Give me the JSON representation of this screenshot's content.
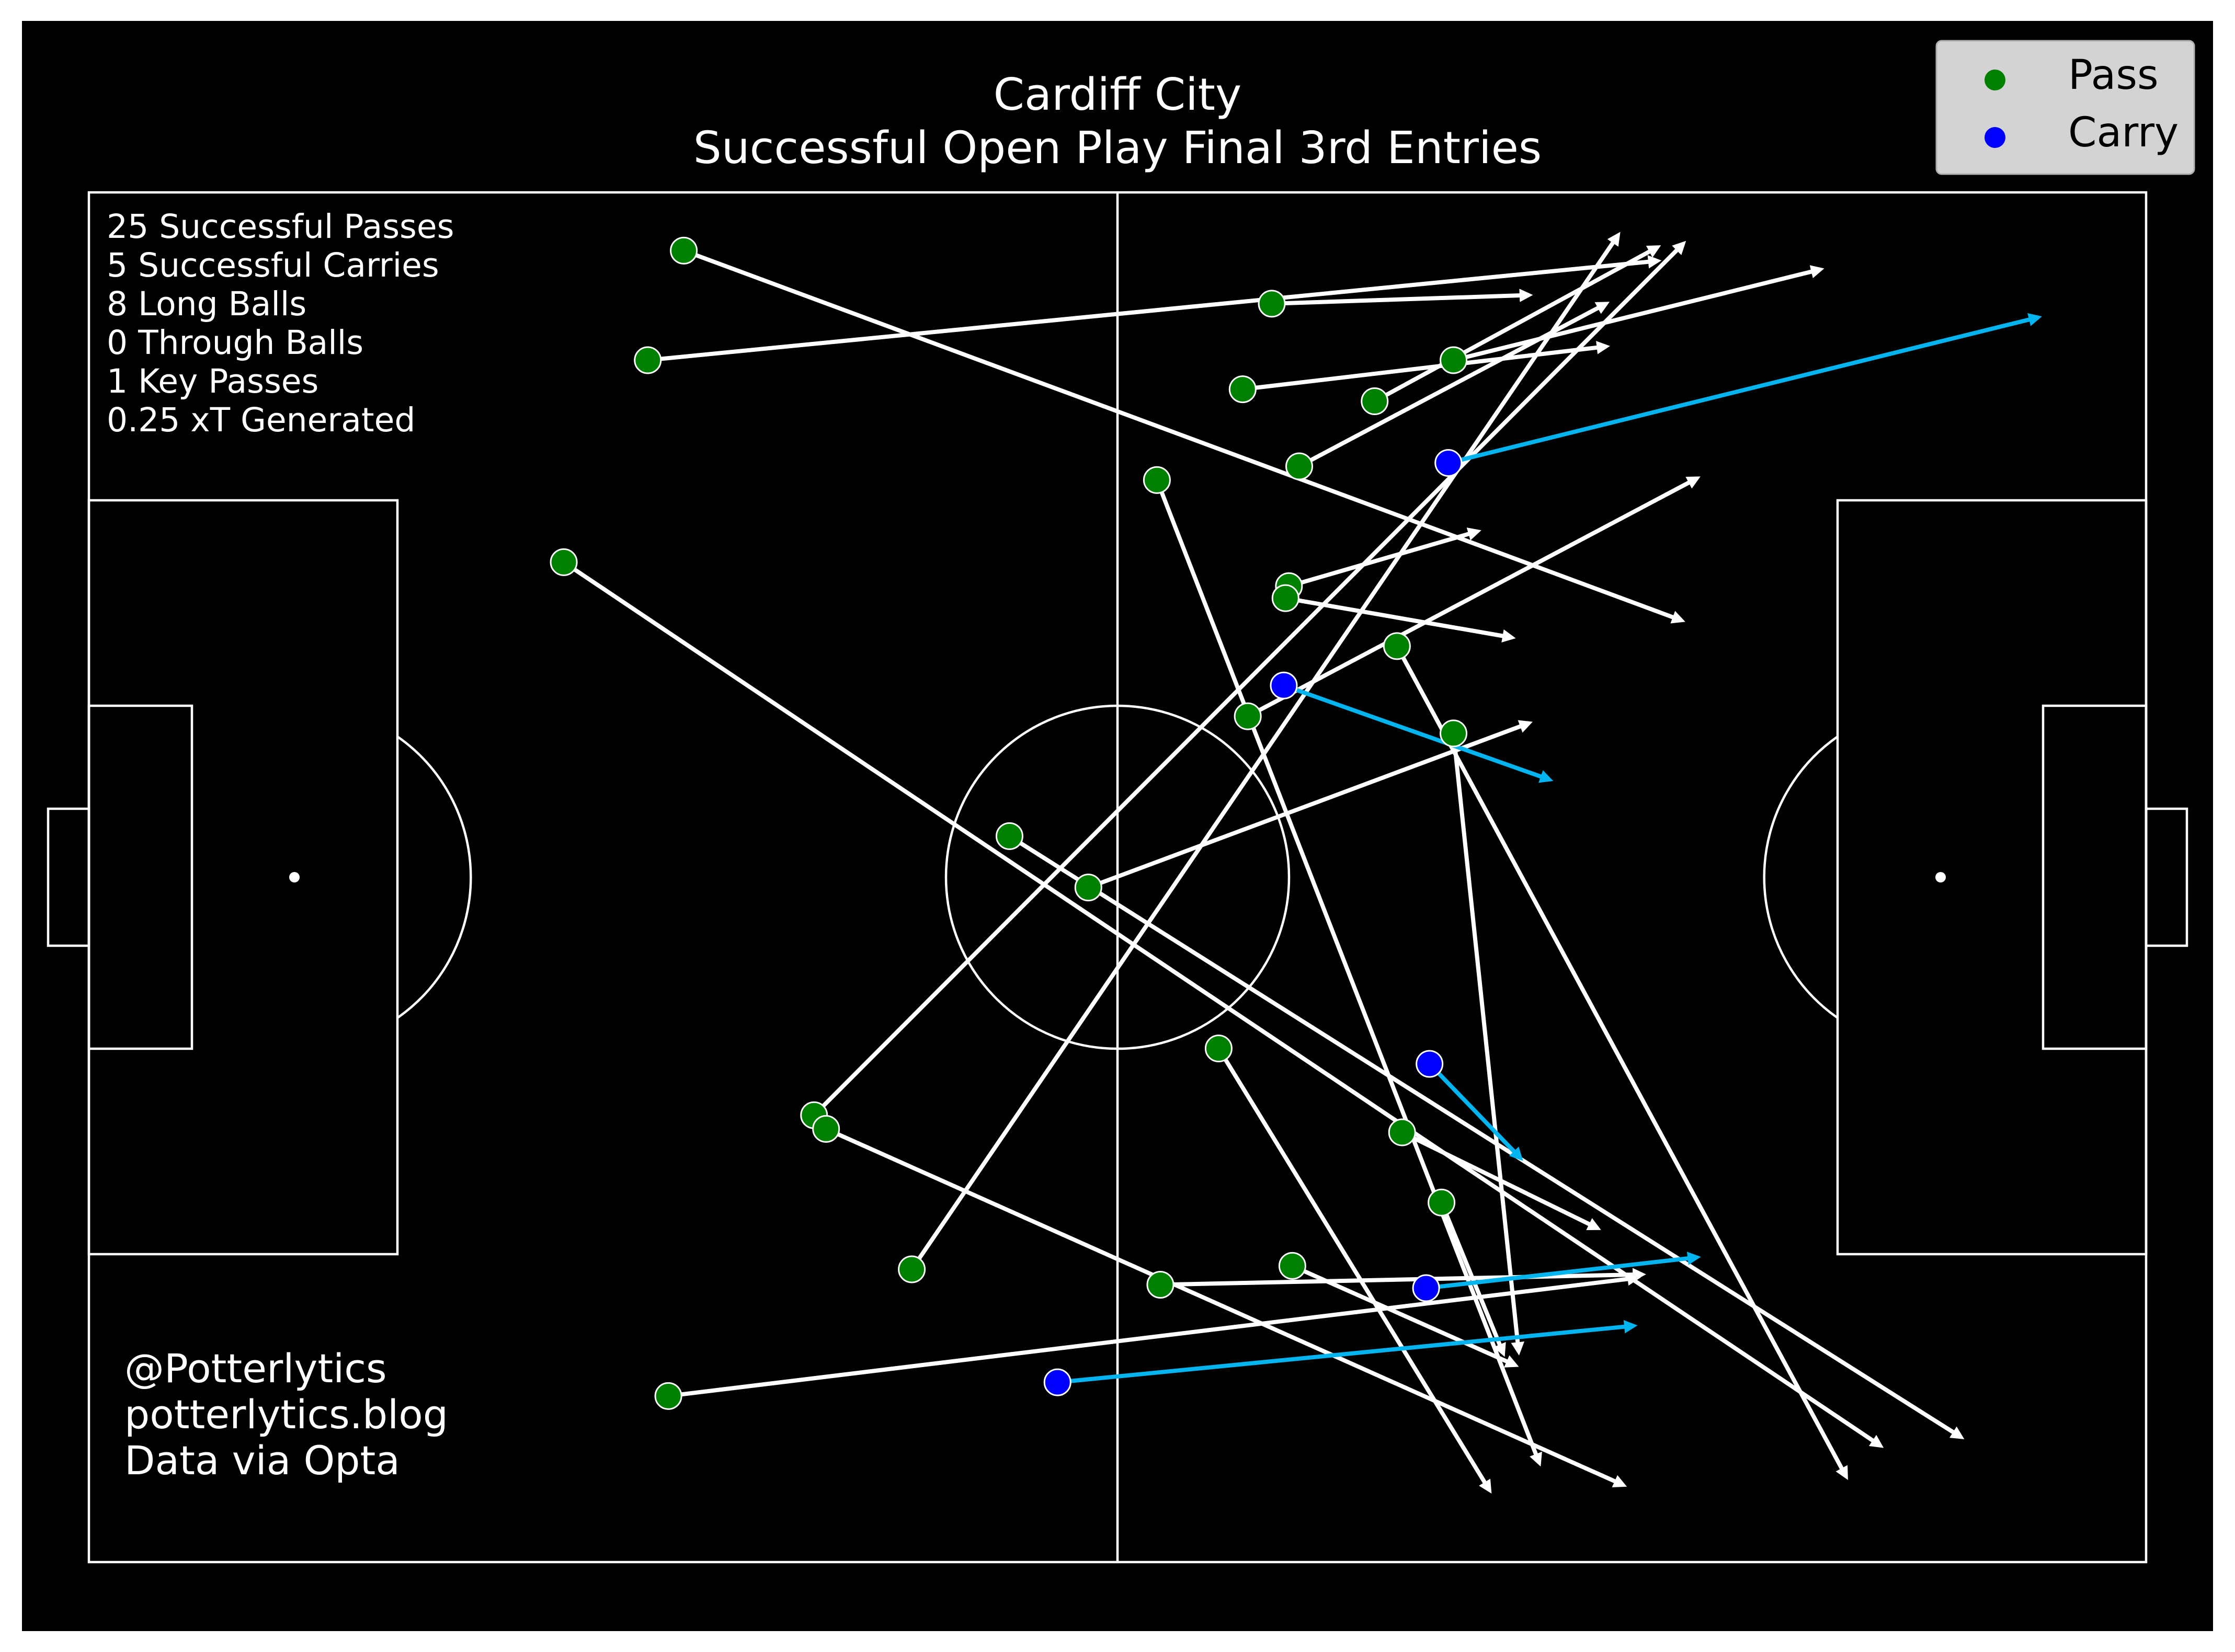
{
  "title_line1": "Cardiff City",
  "title_line2": "Successful Open Play Final 3rd Entries",
  "stats": [
    "25 Successful Passes",
    "5 Successful Carries",
    "8 Long Balls",
    "0 Through Balls",
    "1 Key Passes",
    "0.25 xT Generated"
  ],
  "credits": [
    "@Potterlytics",
    "potterlytics.blog",
    "Data via Opta"
  ],
  "legend": [
    {
      "label": "Pass",
      "color": "#008000"
    },
    {
      "label": "Carry",
      "color": "#0000ff"
    }
  ],
  "colors": {
    "background": "#000000",
    "pitch_lines": "#ffffff",
    "pass_line": "#ffffff",
    "carry_line": "#00b4f0",
    "pass_marker": "#008000",
    "carry_marker": "#0000ff",
    "legend_bg": "#d3d3d3"
  },
  "chart_data": {
    "type": "scatter",
    "pitch": {
      "length": 120,
      "width": 80
    },
    "series": [
      {
        "name": "Pass",
        "segments": [
          {
            "x1": 34.7,
            "y1": 3.4,
            "x2": 92.9,
            "y2": 25.0
          },
          {
            "x1": 32.6,
            "y1": 9.8,
            "x2": 91.5,
            "y2": 4.0
          },
          {
            "x1": 69.0,
            "y1": 6.5,
            "x2": 84.0,
            "y2": 6.0
          },
          {
            "x1": 67.3,
            "y1": 11.5,
            "x2": 88.5,
            "y2": 9.0
          },
          {
            "x1": 79.6,
            "y1": 9.8,
            "x2": 101.0,
            "y2": 4.5
          },
          {
            "x1": 75.0,
            "y1": 12.2,
            "x2": 91.5,
            "y2": 3.2
          },
          {
            "x1": 70.6,
            "y1": 16.0,
            "x2": 88.5,
            "y2": 6.5
          },
          {
            "x1": 62.3,
            "y1": 16.8,
            "x2": 84.6,
            "y2": 74.2
          },
          {
            "x1": 27.7,
            "y1": 21.6,
            "x2": 104.5,
            "y2": 73.2
          },
          {
            "x1": 70.0,
            "y1": 23.0,
            "x2": 81.0,
            "y2": 19.8
          },
          {
            "x1": 69.8,
            "y1": 23.7,
            "x2": 83.0,
            "y2": 26.0
          },
          {
            "x1": 76.3,
            "y1": 26.5,
            "x2": 102.5,
            "y2": 75.0
          },
          {
            "x1": 67.6,
            "y1": 30.6,
            "x2": 93.8,
            "y2": 16.7
          },
          {
            "x1": 79.6,
            "y1": 31.6,
            "x2": 83.4,
            "y2": 67.7
          },
          {
            "x1": 53.7,
            "y1": 37.6,
            "x2": 109.2,
            "y2": 72.7
          },
          {
            "x1": 58.3,
            "y1": 40.6,
            "x2": 84.0,
            "y2": 31.0
          },
          {
            "x1": 65.9,
            "y1": 50.0,
            "x2": 81.7,
            "y2": 75.8
          },
          {
            "x1": 42.3,
            "y1": 53.9,
            "x2": 93.0,
            "y2": 3.0
          },
          {
            "x1": 43.0,
            "y1": 54.7,
            "x2": 89.5,
            "y2": 75.5
          },
          {
            "x1": 76.6,
            "y1": 54.9,
            "x2": 88.0,
            "y2": 60.5
          },
          {
            "x1": 78.9,
            "y1": 59.0,
            "x2": 82.5,
            "y2": 67.8
          },
          {
            "x1": 48.0,
            "y1": 62.9,
            "x2": 89.2,
            "y2": 2.5
          },
          {
            "x1": 70.2,
            "y1": 62.7,
            "x2": 83.2,
            "y2": 68.5
          },
          {
            "x1": 62.5,
            "y1": 63.8,
            "x2": 90.6,
            "y2": 63.2
          },
          {
            "x1": 33.8,
            "y1": 70.3,
            "x2": 90.3,
            "y2": 63.4
          }
        ]
      },
      {
        "name": "Carry",
        "segments": [
          {
            "x1": 79.3,
            "y1": 15.8,
            "x2": 113.7,
            "y2": 7.3
          },
          {
            "x1": 69.7,
            "y1": 28.8,
            "x2": 85.2,
            "y2": 34.3
          },
          {
            "x1": 78.2,
            "y1": 50.9,
            "x2": 83.5,
            "y2": 56.4
          },
          {
            "x1": 78.0,
            "y1": 64.0,
            "x2": 93.8,
            "y2": 62.2
          },
          {
            "x1": 56.5,
            "y1": 69.5,
            "x2": 90.1,
            "y2": 66.2
          }
        ]
      }
    ]
  }
}
